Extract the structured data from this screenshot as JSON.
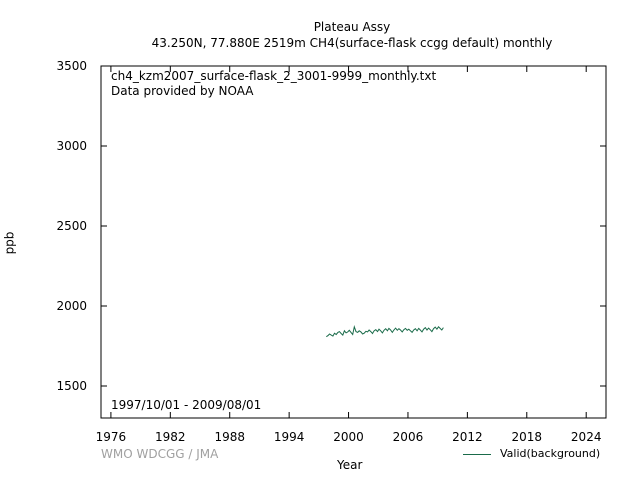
{
  "header": {
    "title": "Plateau Assy",
    "subtitle": "43.250N, 77.880E 2519m    CH4(surface-flask ccgg default) monthly"
  },
  "plot": {
    "file_label": "ch4_kzm2007_surface-flask_2_3001-9999_monthly.txt",
    "provider_label": "Data provided by NOAA",
    "period_label": "1997/10/01 - 2009/08/01"
  },
  "footer": {
    "credit": "WMO WDCGG / JMA",
    "legend_label": "Valid(background)"
  },
  "colors": {
    "series": "#1a6b4a",
    "credit": "#a0a0a0"
  },
  "chart_data": {
    "type": "line",
    "title": "Plateau Assy",
    "xlabel": "Year",
    "ylabel": "ppb",
    "xlim": [
      1975,
      2026
    ],
    "ylim": [
      1300,
      3500
    ],
    "xticks": [
      1976,
      1982,
      1988,
      1994,
      2000,
      2006,
      2012,
      2018,
      2024
    ],
    "yticks": [
      1500,
      2000,
      2500,
      3000,
      3500
    ],
    "grid": false,
    "legend": "bottom-right",
    "series": [
      {
        "name": "Valid(background)",
        "x": [
          1997.75,
          1997.92,
          1998.08,
          1998.25,
          1998.42,
          1998.58,
          1998.75,
          1998.92,
          1999.08,
          1999.25,
          1999.42,
          1999.58,
          1999.75,
          1999.92,
          2000.08,
          2000.25,
          2000.42,
          2000.58,
          2000.75,
          2000.92,
          2001.08,
          2001.25,
          2001.42,
          2001.58,
          2001.75,
          2001.92,
          2002.08,
          2002.25,
          2002.42,
          2002.58,
          2002.75,
          2002.92,
          2003.08,
          2003.25,
          2003.42,
          2003.58,
          2003.75,
          2003.92,
          2004.08,
          2004.25,
          2004.42,
          2004.58,
          2004.75,
          2004.92,
          2005.08,
          2005.25,
          2005.42,
          2005.58,
          2005.75,
          2005.92,
          2006.08,
          2006.25,
          2006.42,
          2006.58,
          2006.75,
          2006.92,
          2007.08,
          2007.25,
          2007.42,
          2007.58,
          2007.75,
          2007.92,
          2008.08,
          2008.25,
          2008.42,
          2008.58,
          2008.75,
          2008.92,
          2009.08,
          2009.25,
          2009.42,
          2009.58
        ],
        "y": [
          1808,
          1815,
          1825,
          1818,
          1812,
          1830,
          1822,
          1835,
          1840,
          1828,
          1818,
          1845,
          1832,
          1838,
          1848,
          1835,
          1822,
          1870,
          1840,
          1835,
          1845,
          1838,
          1825,
          1830,
          1842,
          1838,
          1850,
          1840,
          1828,
          1845,
          1852,
          1840,
          1855,
          1845,
          1832,
          1848,
          1858,
          1845,
          1860,
          1850,
          1835,
          1850,
          1862,
          1848,
          1858,
          1850,
          1838,
          1852,
          1860,
          1848,
          1855,
          1845,
          1835,
          1850,
          1858,
          1845,
          1860,
          1850,
          1838,
          1855,
          1865,
          1850,
          1862,
          1852,
          1840,
          1858,
          1868,
          1855,
          1870,
          1860,
          1850,
          1865
        ]
      }
    ]
  }
}
